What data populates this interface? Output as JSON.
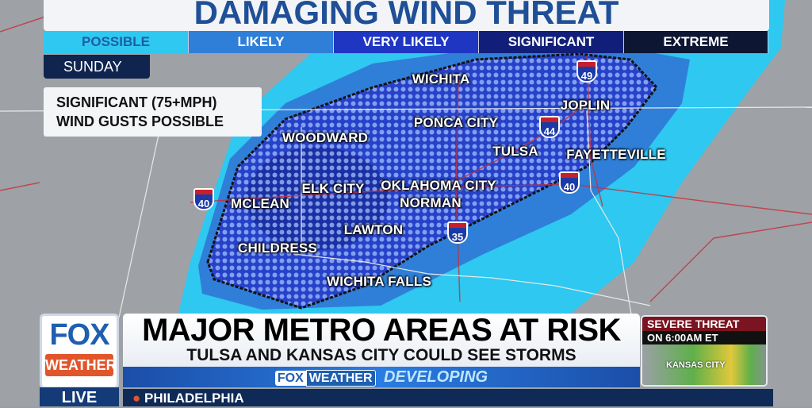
{
  "title": "DAMAGING WIND THREAT",
  "legend": [
    {
      "label": "POSSIBLE",
      "color": "#2ec8f0",
      "text_color": "#1e5fa0"
    },
    {
      "label": "LIKELY",
      "color": "#2f7fd8",
      "text_color": "#ffffff"
    },
    {
      "label": "VERY LIKELY",
      "color": "#1f36c2",
      "text_color": "#ffffff"
    },
    {
      "label": "SIGNIFICANT",
      "color": "#121f7a",
      "text_color": "#ffffff"
    },
    {
      "label": "EXTREME",
      "color": "#0d1633",
      "text_color": "#ffffff"
    }
  ],
  "day": "SUNDAY",
  "note": {
    "line1": "SIGNIFICANT (75+MPH)",
    "line2": "WIND GUSTS POSSIBLE"
  },
  "cities": [
    "WICHITA",
    "JOPLIN",
    "PONCA CITY",
    "WOODWARD",
    "TULSA",
    "FAYETTEVILLE",
    "ELK CITY",
    "OKLAHOMA CITY",
    "NORMAN",
    "MCLEAN",
    "LAWTON",
    "CHILDRESS",
    "WICHITA FALLS"
  ],
  "interstates": [
    "49",
    "44",
    "40",
    "40",
    "35"
  ],
  "lower_third": {
    "logo_top": "FOX",
    "logo_bottom": "WEATHER",
    "live": "LIVE",
    "headline": "MAJOR METRO AREAS AT RISK",
    "subhead": "TULSA AND KANSAS CITY COULD SEE STORMS",
    "brand_fox": "FOX",
    "brand_weather": "WEATHER",
    "developing": "DEVELOPING",
    "location": "PHILADELPHIA",
    "thumb_title": "SEVERE THREAT",
    "thumb_time": "ON 6:00AM ET",
    "thumb_city": "KANSAS CITY"
  }
}
